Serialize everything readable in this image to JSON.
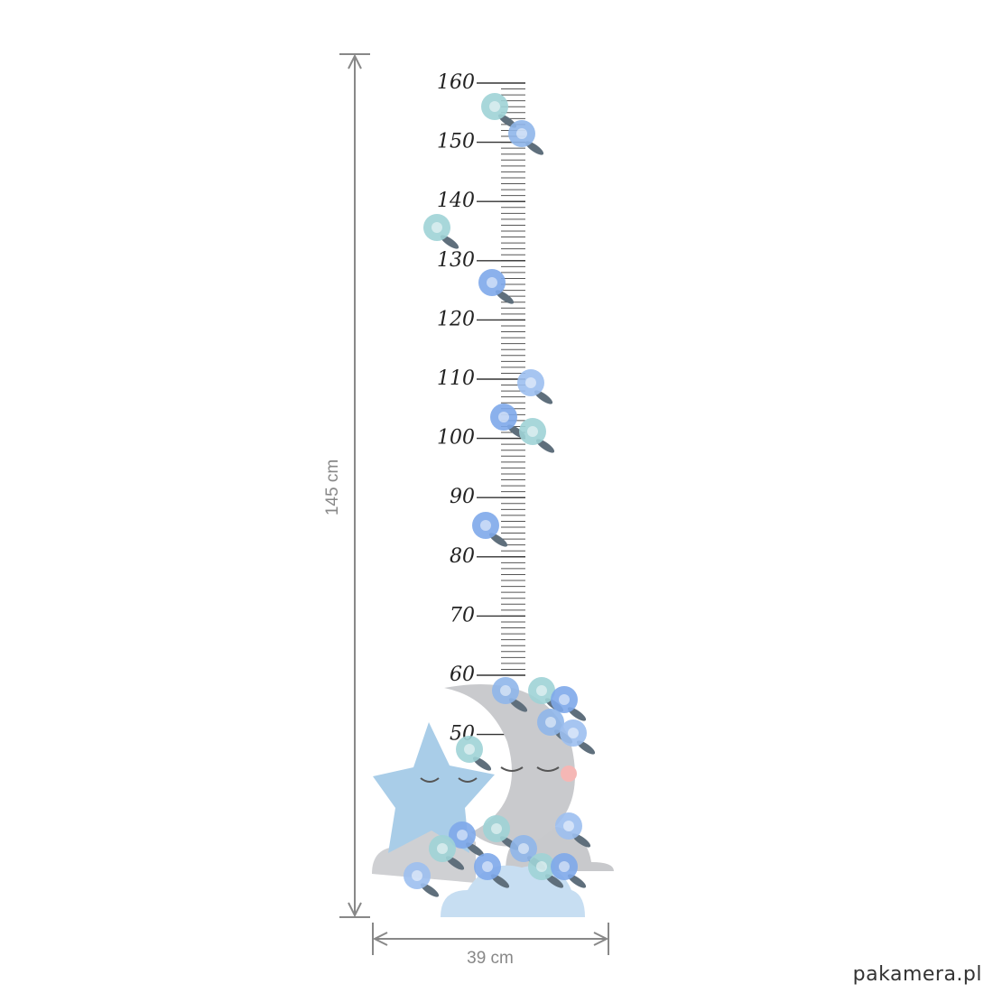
{
  "ruler": {
    "labels": [
      "160",
      "150",
      "140",
      "130",
      "120",
      "110",
      "100",
      "90",
      "80",
      "70",
      "60",
      "50"
    ]
  },
  "dimensions": {
    "height": "145 cm",
    "width": "39 cm"
  },
  "watermark": "pakamera.pl"
}
